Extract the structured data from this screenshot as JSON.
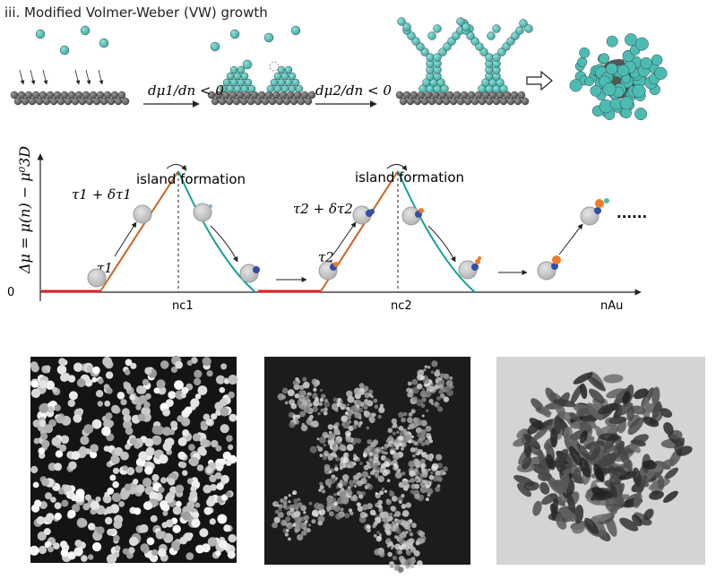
{
  "title": "iii. Modified Volmer-Weber (VW) growth",
  "arrow_labels": [
    "dμ1/dn < 0",
    "dμ2/dn < 0"
  ],
  "plot": {
    "y_axis_label": "Δμ = μ(n) − μ⁰3D",
    "y_zero_label": "0",
    "x_axis_label": "nAu",
    "ticks": [
      "nc1",
      "nc2"
    ],
    "island_labels": [
      "island formation",
      "island formation"
    ],
    "tau_labels": [
      "τ1",
      "τ1 + δτ1",
      "τ2",
      "τ2 + δτ2"
    ],
    "ellipsis": "......"
  },
  "colors": {
    "teal_atom": "#4cbcb3",
    "substrate_atom": "#6a6a6a",
    "red_segment": "#e02020",
    "orange_line": "#c8651f",
    "teal_line": "#14a197",
    "core_particle": "#c8c8c8",
    "blue_tip": "#2f4fa8",
    "orange_tip": "#f07a28"
  },
  "images": [
    "sem-nanoparticles",
    "haadf-nanoflowers",
    "tem-nanoflower"
  ]
}
